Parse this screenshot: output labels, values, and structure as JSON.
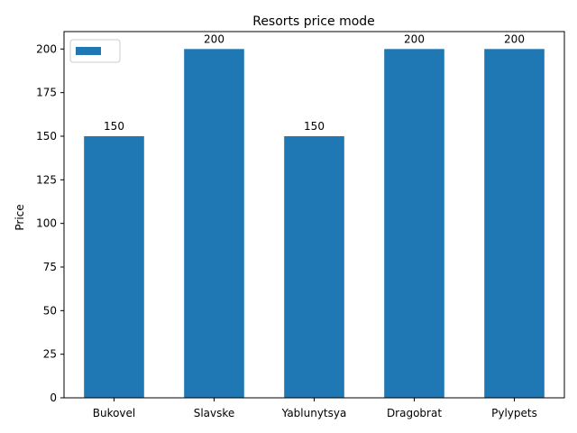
{
  "chart_data": {
    "type": "bar",
    "title": "Resorts price mode",
    "xlabel": "",
    "ylabel": "Price",
    "categories": [
      "Bukovel",
      "Slavske",
      "Yablunytsya",
      "Dragobrat",
      "Pylypets"
    ],
    "series": [
      {
        "values": [
          150,
          200,
          150,
          200,
          200
        ]
      }
    ],
    "data_labels": [
      "150",
      "200",
      "150",
      "200",
      "200"
    ],
    "yticks": [
      0,
      25,
      50,
      75,
      100,
      125,
      150,
      175,
      200
    ],
    "ylim": [
      0,
      210
    ],
    "grid": false,
    "legend": {
      "position": "top-left",
      "entries": [
        ""
      ]
    },
    "colors": {
      "bar": "#1f77b4",
      "axis": "#000000",
      "legend_border": "#cccccc"
    }
  }
}
